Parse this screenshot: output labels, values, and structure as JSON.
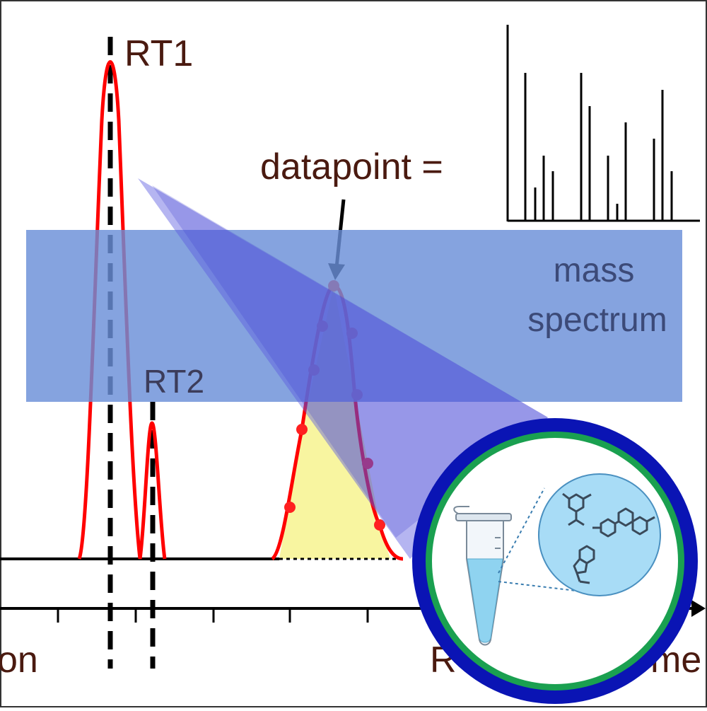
{
  "labels": {
    "rt1": "RT1",
    "rt2": "RT2",
    "datapoint": "datapoint =",
    "mass_spectrum_line1": "mass",
    "mass_spectrum_line2": "spectrum",
    "x_left_fragment": "on",
    "x_right_fragment_start": "R",
    "x_right_fragment_end": "me"
  },
  "colors": {
    "chromatogram": "#ff0000",
    "baseline": "#000000",
    "label_text": "#4a1a10",
    "mass_band": "#6a8fd8",
    "mass_text": "#3c4a78",
    "projection": "#5a5ae0",
    "peak_area": "#f8f5a0",
    "circle_outer": "#0a14b4",
    "circle_inner": "#1aa050",
    "tube_liquid": "#8fd3f0",
    "molecule_bubble": "#a8dcf6"
  },
  "icons": {
    "sample_tube": "microcentrifuge-tube-icon",
    "molecules": "molecules-icon"
  }
}
